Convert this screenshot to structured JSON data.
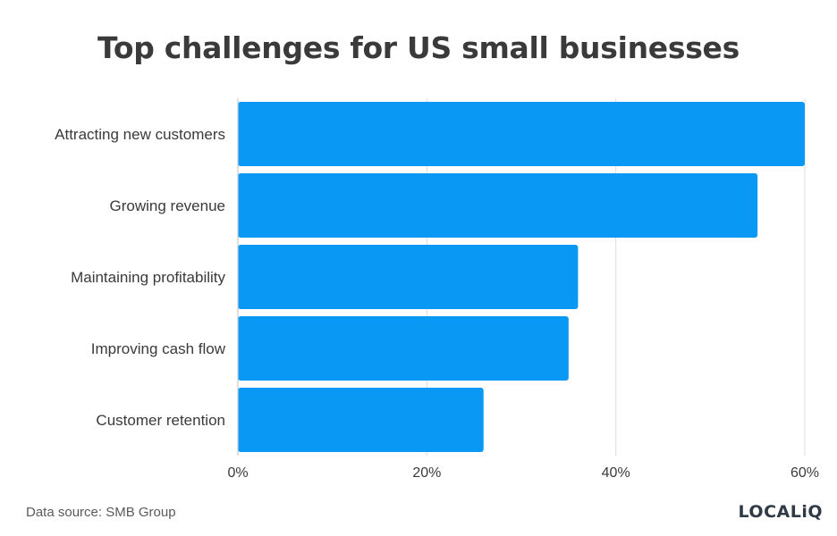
{
  "chart_data": {
    "type": "bar",
    "orientation": "horizontal",
    "title": "Top challenges for US small businesses",
    "categories": [
      "Attracting new customers",
      "Growing revenue",
      "Maintaining profitability",
      "Improving cash flow",
      "Customer retention"
    ],
    "values": [
      60,
      55,
      36,
      35,
      26
    ],
    "value_unit": "%",
    "xlim": [
      0,
      60
    ],
    "xticks": [
      0,
      20,
      40,
      60
    ],
    "xtick_labels": [
      "0%",
      "20%",
      "40%",
      "60%"
    ],
    "xlabel": "",
    "ylabel": "",
    "grid": "vertical",
    "bar_color": "#0a98f5",
    "grid_color": "#e2e2e2"
  },
  "source_text": "Data source: SMB Group",
  "logo": {
    "text": "LOCALiQ"
  }
}
